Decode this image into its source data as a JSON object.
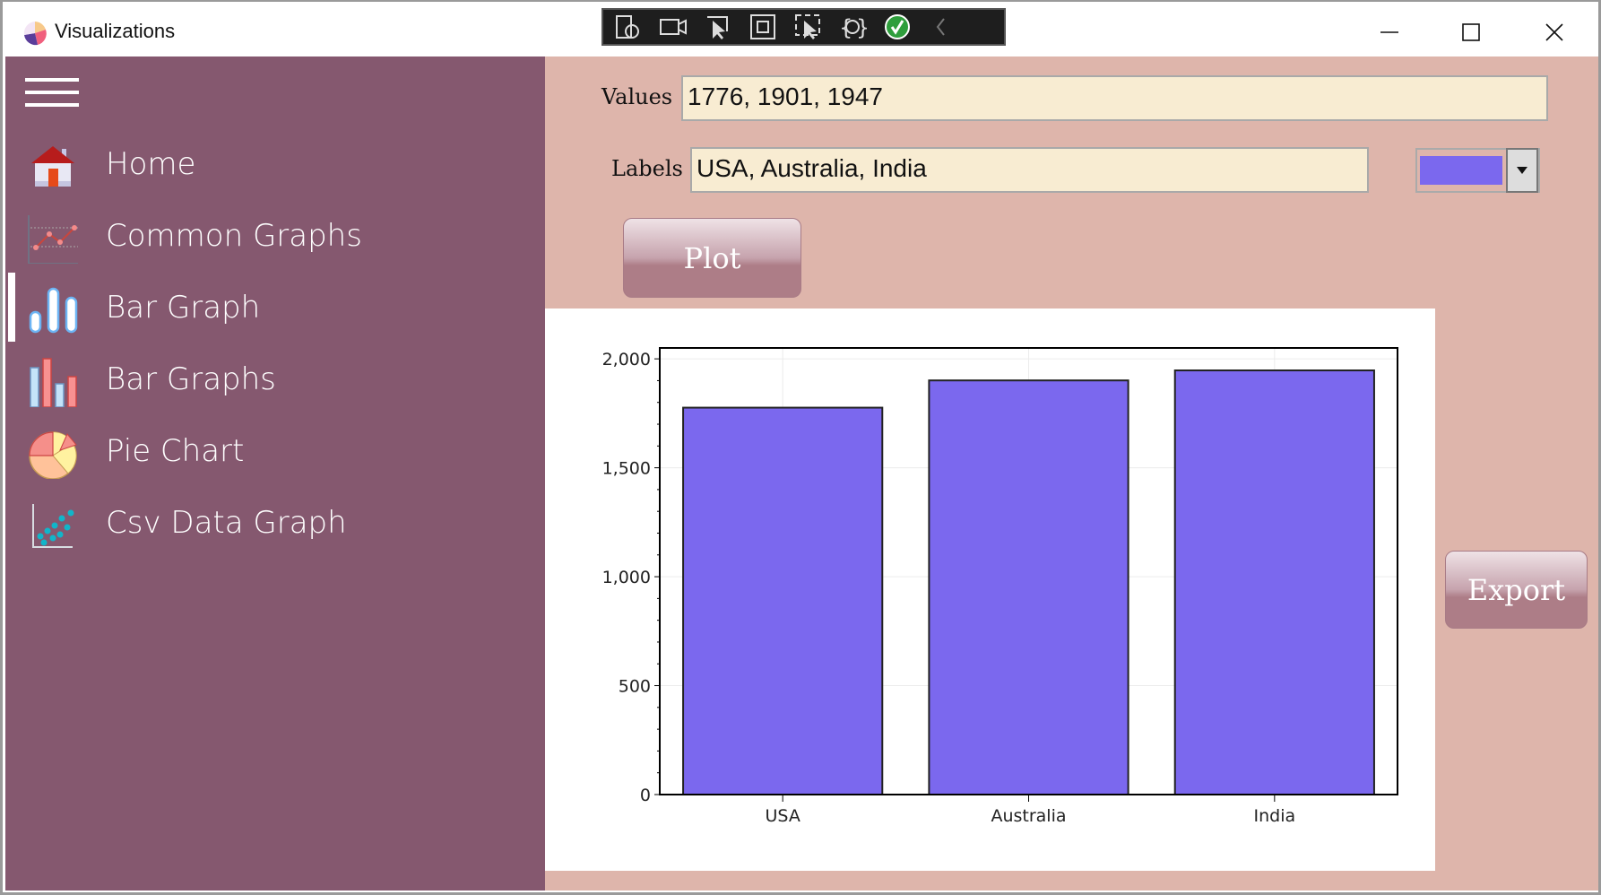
{
  "window": {
    "title": "Visualizations",
    "controls": [
      "minimize",
      "maximize",
      "close"
    ]
  },
  "debug_toolbar": {
    "icons": [
      "select-element-icon",
      "record-icon",
      "pointer-icon",
      "layout-adorner-icon",
      "track-focus-icon",
      "binding-icon",
      "check-icon",
      "collapse-icon"
    ]
  },
  "sidebar": {
    "items": [
      {
        "label": "Home",
        "icon": "home-icon"
      },
      {
        "label": "Common Graphs",
        "icon": "line-graph-icon"
      },
      {
        "label": "Bar Graph",
        "icon": "bar-graph-icon",
        "selected": true
      },
      {
        "label": "Bar Graphs",
        "icon": "bar-graphs-icon"
      },
      {
        "label": "Pie Chart",
        "icon": "pie-chart-icon"
      },
      {
        "label": "Csv Data Graph",
        "icon": "scatter-icon"
      }
    ]
  },
  "form": {
    "values_label": "Values",
    "values": "1776, 1901, 1947",
    "labels_label": "Labels",
    "labels": "USA, Australia, India",
    "color": "#7b68ee",
    "plot_label": "Plot",
    "export_label": "Export"
  },
  "chart_data": {
    "type": "bar",
    "categories": [
      "USA",
      "Australia",
      "India"
    ],
    "values": [
      1776,
      1901,
      1947
    ],
    "ylim": [
      0,
      2050
    ],
    "yticks": [
      0,
      500,
      1000,
      1500,
      2000
    ],
    "ytick_labels": [
      "0",
      "500",
      "1,000",
      "1,500",
      "2,000"
    ],
    "bar_color": "#7b68ee",
    "grid": true,
    "title": "",
    "xlabel": "",
    "ylabel": ""
  }
}
